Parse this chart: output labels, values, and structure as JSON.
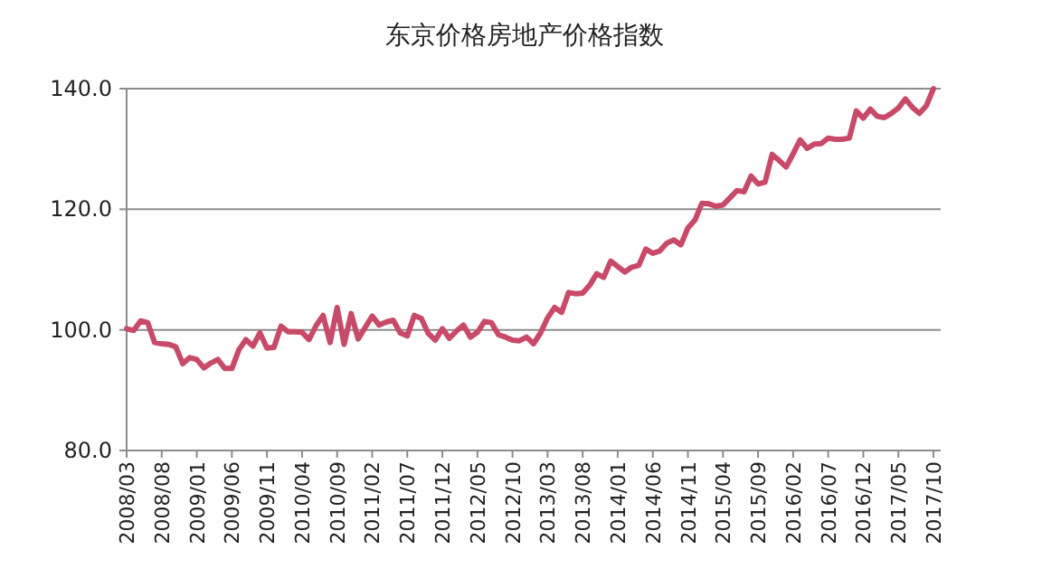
{
  "chart_data": {
    "type": "line",
    "title": "东京价格房地产价格指数",
    "categories": [
      "2008/03",
      null,
      null,
      null,
      null,
      "2008/08",
      null,
      null,
      null,
      null,
      "2009/01",
      null,
      null,
      null,
      null,
      "2009/06",
      null,
      null,
      null,
      null,
      "2009/11",
      null,
      null,
      null,
      null,
      "2010/04",
      null,
      null,
      null,
      null,
      "2010/09",
      null,
      null,
      null,
      null,
      "2011/02",
      null,
      null,
      null,
      null,
      "2011/07",
      null,
      null,
      null,
      null,
      "2011/12",
      null,
      null,
      null,
      null,
      "2012/05",
      null,
      null,
      null,
      null,
      "2012/10",
      null,
      null,
      null,
      null,
      "2013/03",
      null,
      null,
      null,
      null,
      "2013/08",
      null,
      null,
      null,
      null,
      "2014/01",
      null,
      null,
      null,
      null,
      "2014/06",
      null,
      null,
      null,
      null,
      "2014/11",
      null,
      null,
      null,
      null,
      "2015/04",
      null,
      null,
      null,
      null,
      "2015/09",
      null,
      null,
      null,
      null,
      "2016/02",
      null,
      null,
      null,
      null,
      "2016/07",
      null,
      null,
      null,
      null,
      "2016/12",
      null,
      null,
      null,
      null,
      "2017/05",
      null,
      null,
      null,
      null,
      "2017/10"
    ],
    "series": [
      {
        "color": "#c84a68",
        "values": [
          100.2,
          99.9,
          101.5,
          101.2,
          97.9,
          97.7,
          97.6,
          97.2,
          94.4,
          95.4,
          95.1,
          93.7,
          94.5,
          95.1,
          93.6,
          93.6,
          96.7,
          98.4,
          97.3,
          99.5,
          97.0,
          97.1,
          100.6,
          99.7,
          99.7,
          99.6,
          98.4,
          100.7,
          102.4,
          97.9,
          103.7,
          97.6,
          102.7,
          98.5,
          100.4,
          102.3,
          100.8,
          101.3,
          101.6,
          99.5,
          99.0,
          102.4,
          101.9,
          99.4,
          98.3,
          100.2,
          98.6,
          99.8,
          100.8,
          98.8,
          99.6,
          101.4,
          101.2,
          99.2,
          98.8,
          98.3,
          98.2,
          98.8,
          97.7,
          99.5,
          102.0,
          103.7,
          102.9,
          106.2,
          106.0,
          106.1,
          107.4,
          109.3,
          108.7,
          111.4,
          110.5,
          109.6,
          110.4,
          110.7,
          113.4,
          112.7,
          113.1,
          114.4,
          114.9,
          114.1,
          116.9,
          118.2,
          121.0,
          120.9,
          120.5,
          120.7,
          121.9,
          123.1,
          122.9,
          125.5,
          124.2,
          124.5,
          129.1,
          128.1,
          127.0,
          129.2,
          131.5,
          130.1,
          130.8,
          130.9,
          131.8,
          131.6,
          131.6,
          131.8,
          136.3,
          135.1,
          136.6,
          135.4,
          135.2,
          135.9,
          136.8,
          138.3,
          136.9,
          135.9,
          137.2,
          140.0
        ]
      }
    ],
    "ylim": [
      80,
      140
    ],
    "yticks": [
      {
        "value": 80,
        "label": "80.0"
      },
      {
        "value": 100,
        "label": "100.0"
      },
      {
        "value": 120,
        "label": "120.0"
      },
      {
        "value": 140,
        "label": "140.0"
      }
    ],
    "grid": "y",
    "marker": "none",
    "line_style": "solid"
  }
}
